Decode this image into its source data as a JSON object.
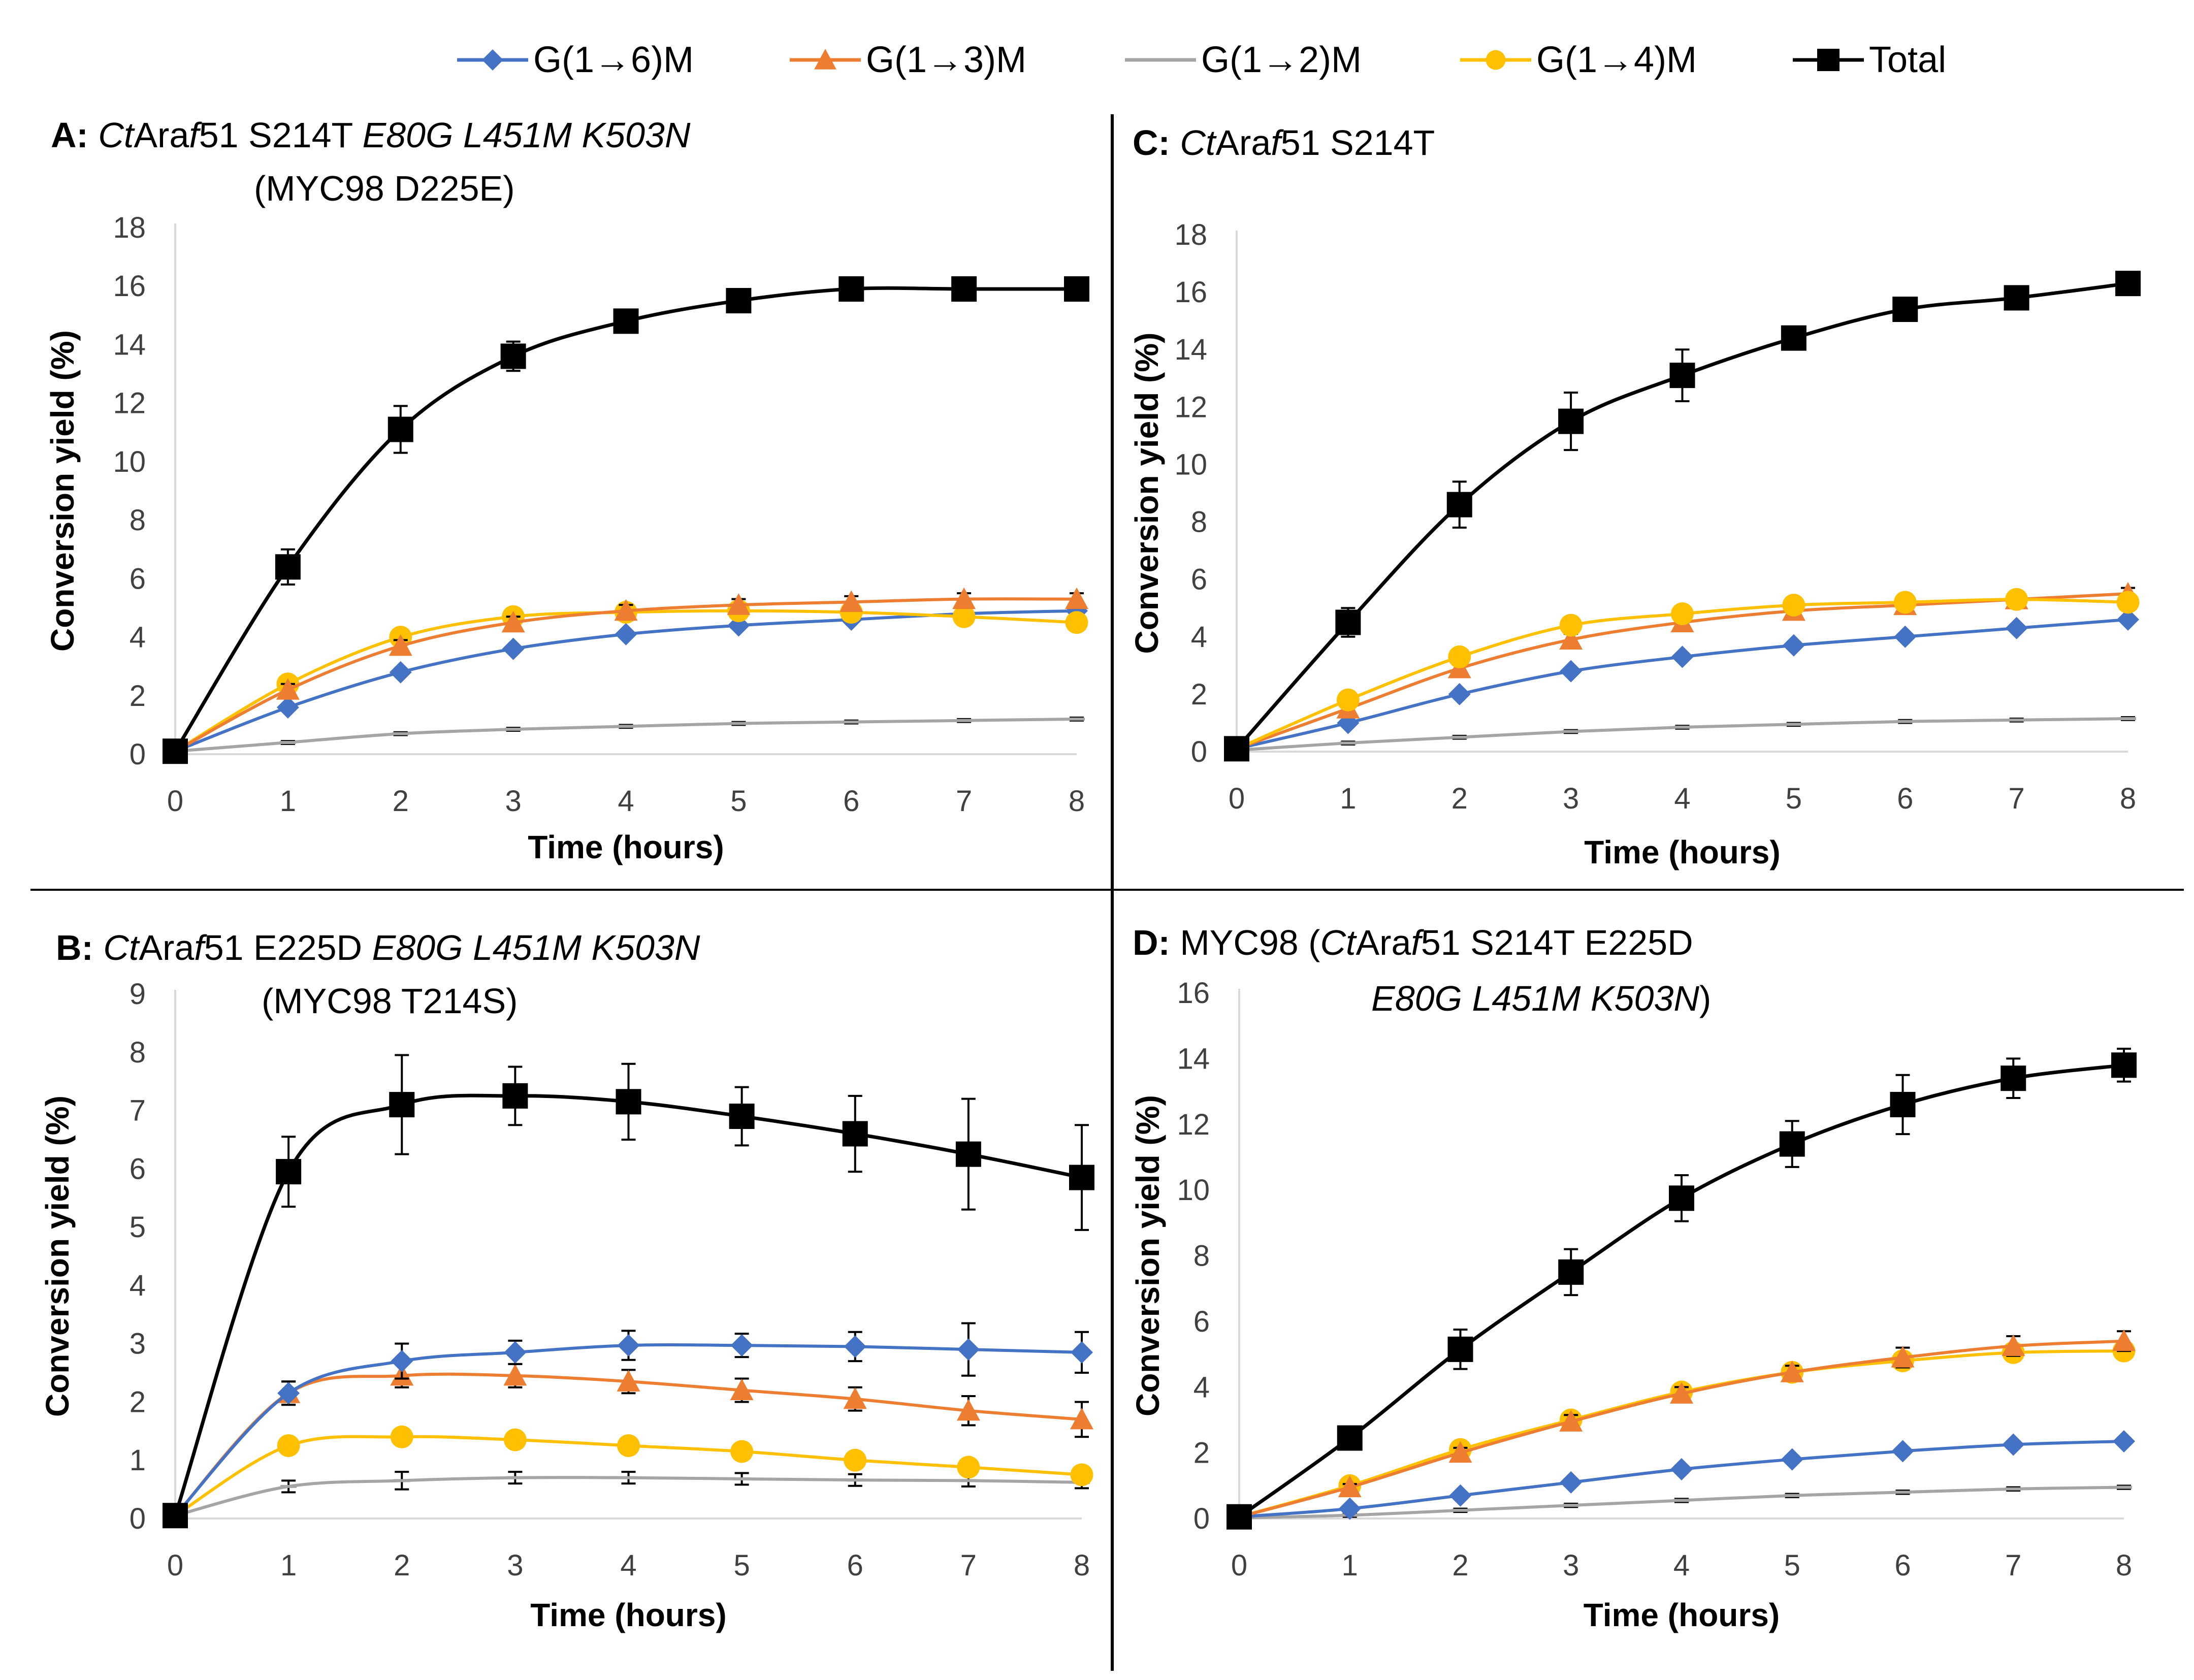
{
  "legend": {
    "entries": [
      {
        "key": "g16",
        "label": "G(1→6)M"
      },
      {
        "key": "g13",
        "label": "G(1→3)M"
      },
      {
        "key": "g12",
        "label": "G(1→2)M"
      },
      {
        "key": "g14",
        "label": "G(1→4)M"
      },
      {
        "key": "total",
        "label": "Total"
      }
    ]
  },
  "series_styles": {
    "g16": {
      "color": "#4472C4",
      "marker": "diamond",
      "line": "#4472C4"
    },
    "g13": {
      "color": "#ED7D31",
      "marker": "triangle",
      "line": "#ED7D31"
    },
    "g12": {
      "color": "#A5A5A5",
      "marker": "dash",
      "line": "#A5A5A5"
    },
    "g14": {
      "color": "#FFC000",
      "marker": "circle",
      "line": "#FFC000"
    },
    "total": {
      "color": "#000000",
      "marker": "square",
      "line": "#000000"
    }
  },
  "chart_data": [
    {
      "id": "A",
      "type": "line",
      "title_parts": [
        {
          "t": "A: ",
          "s": "b"
        },
        {
          "t": "Ct",
          "s": "i"
        },
        {
          "t": "Ara",
          "s": ""
        },
        {
          "t": "f",
          "s": "i"
        },
        {
          "t": "51 S214T ",
          "s": ""
        },
        {
          "t": "E80G L451M K503N",
          "s": "i"
        }
      ],
      "title_line2": [
        {
          "t": "(MYC98 D225E)",
          "s": ""
        }
      ],
      "xlabel": "Time (hours)",
      "ylabel": "Conversion yield (%)",
      "xlim": [
        0,
        8
      ],
      "ylim": [
        0,
        18
      ],
      "yticks": [
        0,
        2,
        4,
        6,
        8,
        10,
        12,
        14,
        16,
        18
      ],
      "x": [
        0,
        1,
        2,
        3,
        4,
        5,
        6,
        7,
        8
      ],
      "series": [
        {
          "key": "g12",
          "values": [
            0.1,
            0.4,
            0.7,
            0.85,
            0.95,
            1.05,
            1.1,
            1.15,
            1.2
          ],
          "err": [
            0,
            0.05,
            0.05,
            0.05,
            0.05,
            0.05,
            0.05,
            0.05,
            0.05
          ]
        },
        {
          "key": "g16",
          "values": [
            0.1,
            1.6,
            2.8,
            3.6,
            4.1,
            4.4,
            4.6,
            4.8,
            4.9
          ],
          "err": [
            0,
            0.1,
            0.1,
            0.1,
            0.1,
            0.1,
            0.1,
            0.1,
            0.1
          ]
        },
        {
          "key": "g14",
          "values": [
            0.1,
            2.4,
            4.0,
            4.7,
            4.85,
            4.9,
            4.85,
            4.7,
            4.5
          ],
          "err": [
            0,
            0.2,
            0.2,
            0.2,
            0.2,
            0.2,
            0.2,
            0.2,
            0.2
          ]
        },
        {
          "key": "g13",
          "values": [
            0.1,
            2.2,
            3.7,
            4.5,
            4.9,
            5.1,
            5.2,
            5.3,
            5.3
          ],
          "err": [
            0,
            0.2,
            0.2,
            0.2,
            0.2,
            0.2,
            0.2,
            0.2,
            0.2
          ]
        },
        {
          "key": "total",
          "values": [
            0.1,
            6.4,
            11.1,
            13.6,
            14.8,
            15.5,
            15.9,
            15.9,
            15.9
          ],
          "err": [
            0,
            0.6,
            0.8,
            0.5,
            0.3,
            0.3,
            0.2,
            0.2,
            0.2
          ]
        }
      ]
    },
    {
      "id": "C",
      "type": "line",
      "title_parts": [
        {
          "t": "C: ",
          "s": "b"
        },
        {
          "t": "Ct",
          "s": "i"
        },
        {
          "t": "Ara",
          "s": ""
        },
        {
          "t": "f",
          "s": "i"
        },
        {
          "t": "51 S214T",
          "s": ""
        }
      ],
      "title_line2": [],
      "xlabel": "Time (hours)",
      "ylabel": "Conversion yield (%)",
      "xlim": [
        0,
        8
      ],
      "ylim": [
        0,
        18
      ],
      "yticks": [
        0,
        2,
        4,
        6,
        8,
        10,
        12,
        14,
        16,
        18
      ],
      "x": [
        0,
        1,
        2,
        3,
        4,
        5,
        6,
        7,
        8
      ],
      "series": [
        {
          "key": "g12",
          "values": [
            0.05,
            0.3,
            0.5,
            0.7,
            0.85,
            0.95,
            1.05,
            1.1,
            1.15
          ],
          "err": [
            0,
            0.05,
            0.05,
            0.05,
            0.05,
            0.05,
            0.05,
            0.05,
            0.05
          ]
        },
        {
          "key": "g16",
          "values": [
            0.1,
            1.0,
            2.0,
            2.8,
            3.3,
            3.7,
            4.0,
            4.3,
            4.6
          ],
          "err": [
            0,
            0.1,
            0.1,
            0.1,
            0.1,
            0.1,
            0.1,
            0.1,
            0.1
          ]
        },
        {
          "key": "g13",
          "values": [
            0.1,
            1.5,
            2.9,
            3.9,
            4.5,
            4.9,
            5.1,
            5.3,
            5.5
          ],
          "err": [
            0,
            0.2,
            0.2,
            0.2,
            0.2,
            0.2,
            0.2,
            0.2,
            0.2
          ]
        },
        {
          "key": "g14",
          "values": [
            0.1,
            1.8,
            3.3,
            4.4,
            4.8,
            5.1,
            5.2,
            5.3,
            5.2
          ],
          "err": [
            0,
            0.2,
            0.2,
            0.2,
            0.2,
            0.2,
            0.2,
            0.2,
            0.2
          ]
        },
        {
          "key": "total",
          "values": [
            0.1,
            4.5,
            8.6,
            11.5,
            13.1,
            14.4,
            15.4,
            15.8,
            16.3
          ],
          "err": [
            0,
            0.5,
            0.8,
            1.0,
            0.9,
            0.4,
            0.3,
            0.3,
            0.3
          ]
        }
      ]
    },
    {
      "id": "B",
      "type": "line",
      "title_parts": [
        {
          "t": "B: ",
          "s": "b"
        },
        {
          "t": "Ct",
          "s": "i"
        },
        {
          "t": "Ara",
          "s": ""
        },
        {
          "t": "f",
          "s": "i"
        },
        {
          "t": "51 E225D ",
          "s": ""
        },
        {
          "t": "E80G L451M K503N",
          "s": "i"
        }
      ],
      "title_line2": [
        {
          "t": "(MYC98 T214S)",
          "s": ""
        }
      ],
      "xlabel": "Time (hours)",
      "ylabel": "Conversion yield (%)",
      "xlim": [
        0,
        8
      ],
      "ylim": [
        0,
        9
      ],
      "yticks": [
        0,
        1,
        2,
        3,
        4,
        5,
        6,
        7,
        8,
        9
      ],
      "x": [
        0,
        1,
        2,
        3,
        4,
        5,
        6,
        7,
        8
      ],
      "series": [
        {
          "key": "g12",
          "values": [
            0.05,
            0.55,
            0.65,
            0.7,
            0.7,
            0.68,
            0.66,
            0.65,
            0.62
          ],
          "err": [
            0,
            0.1,
            0.15,
            0.1,
            0.1,
            0.1,
            0.1,
            0.1,
            0.1
          ]
        },
        {
          "key": "g14",
          "values": [
            0.05,
            1.25,
            1.4,
            1.35,
            1.25,
            1.15,
            1.0,
            0.88,
            0.75
          ],
          "err": [
            0,
            0.1,
            0.1,
            0.1,
            0.1,
            0.1,
            0.1,
            0.1,
            0.1
          ]
        },
        {
          "key": "g13",
          "values": [
            0.05,
            2.15,
            2.45,
            2.45,
            2.35,
            2.2,
            2.05,
            1.85,
            1.7
          ],
          "err": [
            0,
            0.2,
            0.2,
            0.2,
            0.2,
            0.2,
            0.2,
            0.25,
            0.3
          ]
        },
        {
          "key": "g16",
          "values": [
            0.05,
            2.15,
            2.7,
            2.85,
            2.97,
            2.97,
            2.95,
            2.9,
            2.85
          ],
          "err": [
            0,
            0.2,
            0.3,
            0.2,
            0.25,
            0.2,
            0.25,
            0.45,
            0.35
          ]
        },
        {
          "key": "total",
          "values": [
            0.05,
            5.95,
            7.1,
            7.25,
            7.15,
            6.9,
            6.6,
            6.25,
            5.85
          ],
          "err": [
            0,
            0.6,
            0.85,
            0.5,
            0.65,
            0.5,
            0.65,
            0.95,
            0.9
          ]
        }
      ]
    },
    {
      "id": "D",
      "type": "line",
      "title_parts": [
        {
          "t": "D: ",
          "s": "b"
        },
        {
          "t": "MYC98 (",
          "s": ""
        },
        {
          "t": "Ct",
          "s": "i"
        },
        {
          "t": "Ara",
          "s": ""
        },
        {
          "t": "f",
          "s": "i"
        },
        {
          "t": "51 S214T E225D",
          "s": ""
        }
      ],
      "title_line2": [
        {
          "t": "E80G L451M K503N",
          "s": "i"
        },
        {
          "t": ")",
          "s": ""
        }
      ],
      "xlabel": "Time (hours)",
      "ylabel": "Conversion yield (%)",
      "xlim": [
        0,
        8
      ],
      "ylim": [
        0,
        16
      ],
      "yticks": [
        0,
        2,
        4,
        6,
        8,
        10,
        12,
        14,
        16
      ],
      "x": [
        0,
        1,
        2,
        3,
        4,
        5,
        6,
        7,
        8
      ],
      "series": [
        {
          "key": "g12",
          "values": [
            0.02,
            0.1,
            0.25,
            0.4,
            0.55,
            0.7,
            0.8,
            0.9,
            0.95
          ],
          "err": [
            0,
            0.05,
            0.05,
            0.05,
            0.05,
            0.05,
            0.05,
            0.05,
            0.05
          ]
        },
        {
          "key": "g16",
          "values": [
            0.05,
            0.3,
            0.7,
            1.1,
            1.5,
            1.8,
            2.05,
            2.25,
            2.35
          ],
          "err": [
            0,
            0.05,
            0.05,
            0.1,
            0.1,
            0.1,
            0.1,
            0.1,
            0.1
          ]
        },
        {
          "key": "g14",
          "values": [
            0.05,
            1.0,
            2.1,
            3.0,
            3.85,
            4.45,
            4.8,
            5.05,
            5.1
          ],
          "err": [
            0,
            0.1,
            0.15,
            0.2,
            0.2,
            0.2,
            0.2,
            0.2,
            0.2
          ]
        },
        {
          "key": "g13",
          "values": [
            0.05,
            0.95,
            2.0,
            2.95,
            3.8,
            4.45,
            4.9,
            5.25,
            5.4
          ],
          "err": [
            0,
            0.1,
            0.15,
            0.2,
            0.2,
            0.2,
            0.3,
            0.3,
            0.3
          ]
        },
        {
          "key": "total",
          "values": [
            0.05,
            2.45,
            5.15,
            7.5,
            9.75,
            11.4,
            12.6,
            13.4,
            13.8
          ],
          "err": [
            0,
            0.2,
            0.6,
            0.7,
            0.7,
            0.7,
            0.9,
            0.6,
            0.5
          ]
        }
      ]
    }
  ]
}
